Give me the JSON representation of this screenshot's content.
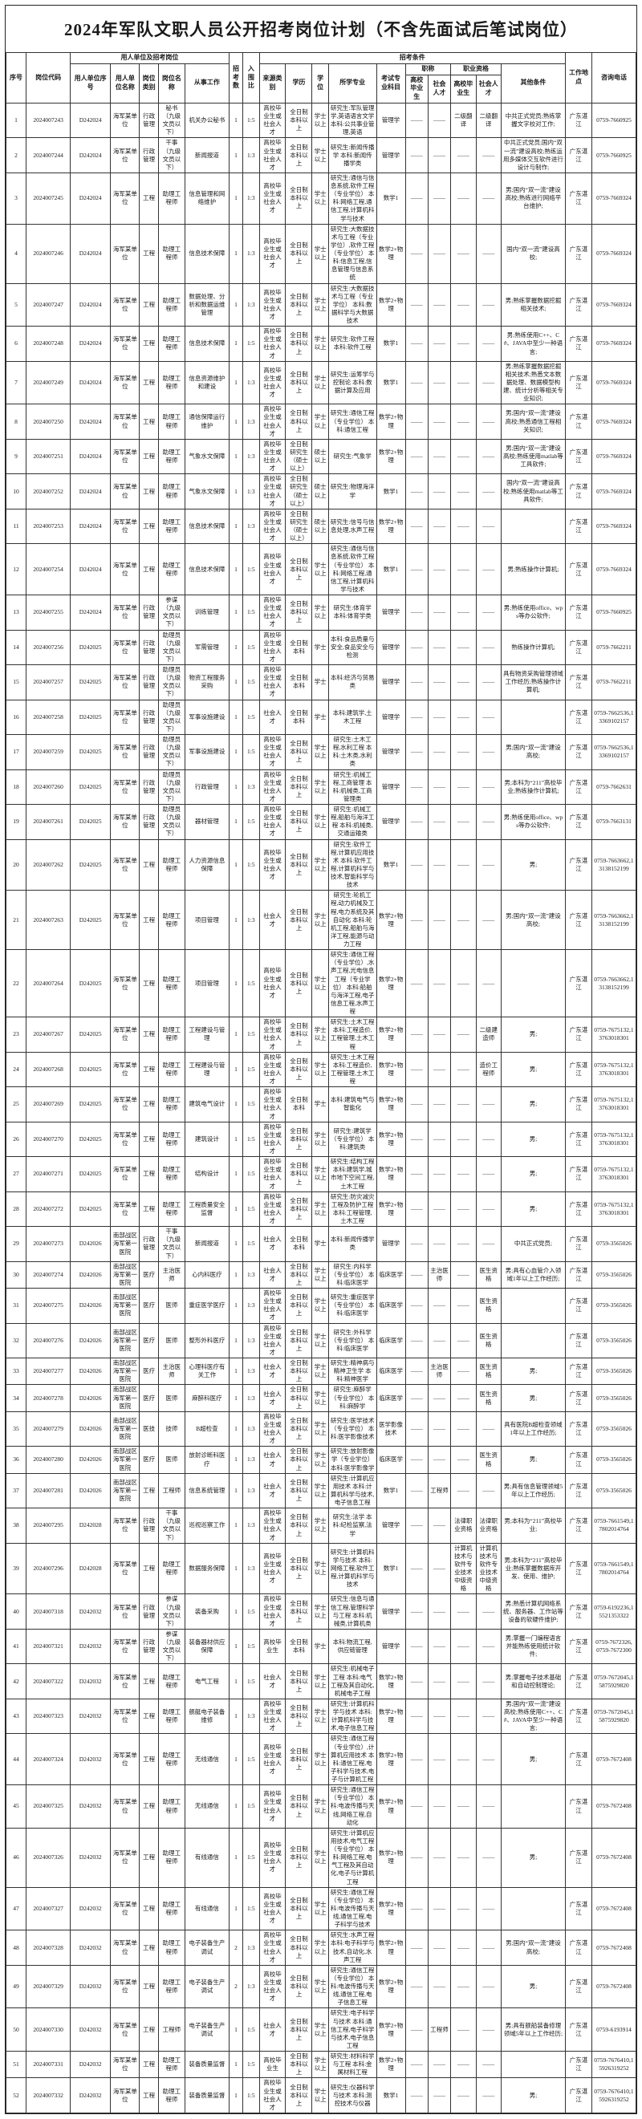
{
  "title": "2024年军队文职人员公开招考岗位计划（不含先面试后笔试岗位）",
  "headers": {
    "xh": "序号",
    "code": "岗位代码",
    "group_unit": "用人单位及招考岗位",
    "unit_no": "用人单位序号",
    "unit_name": "用人单位名称",
    "post_cat": "岗位类别",
    "post_name": "岗位名称",
    "work": "从事工作",
    "num": "招考数",
    "ratio": "入围比",
    "group_cond": "招考条件",
    "source": "来源类别",
    "edu": "学历",
    "degree": "学位",
    "major": "所学专业",
    "subject": "考试专业科目",
    "title_group": "职称",
    "qual_group": "职业资格",
    "grad": "高校毕业生",
    "social": "社会人才",
    "other": "其他条件",
    "loc": "工作地点",
    "tel": "咨询电话"
  },
  "rows": [
    [
      "1",
      "2024007243",
      "D242024",
      "海军某单位",
      "行政管理",
      "秘书（九级文员以下）",
      "机关办公秘书",
      "1",
      "1:5",
      "高校毕业生或社会人才",
      "全日制本科以上",
      "学士以上",
      "研究生:军队管理学,英语语言文学 本科:公共事业管理,英语",
      "管理学",
      "——",
      "——",
      "二级翻译",
      "二级翻译",
      "中共正式党员;熟练掌握文字校对工作;",
      "广东湛江",
      "0759-7660925"
    ],
    [
      "2",
      "2024007244",
      "D242024",
      "海军某单位",
      "行政管理",
      "干事（九级文员以下）",
      "新闻报道",
      "1",
      "1:3",
      "高校毕业生或社会人才",
      "全日制本科以上",
      "学士以上",
      "研究生:新闻传播学 本科:新闻传播学类",
      "管理学",
      "——",
      "——",
      "——",
      "——",
      "中共正式党员;国内“双一流”建设高校;熟练运用多媒体交互软件进行设计与制作;",
      "广东湛江",
      "0759-7660925"
    ],
    [
      "3",
      "2024007245",
      "D242024",
      "海军某单位",
      "工程",
      "助理工程师",
      "信息管理和网络维护",
      "1",
      "1:3",
      "高校毕业生或社会人才",
      "全日制本科以上",
      "学士以上",
      "研究生:通信与信息系统,软件工程（专业学位） 本科:网络工程,通信工程,计算机科学与技术",
      "数学1",
      "——",
      "——",
      "——",
      "——",
      "男;国内“双一流”建设高校;熟练进行网络平台维护;",
      "广东湛江",
      "0759-7669324"
    ],
    [
      "4",
      "2024007246",
      "D242024",
      "海军某单位",
      "工程",
      "助理工程师",
      "信息技术保障",
      "1",
      "1:3",
      "高校毕业生或社会人才",
      "全日制本科以上",
      "学士以上",
      "研究生:大数据技术与工程（专业学位）,软件工程（专业学位） 本科:信息工程,信息管理与信息系统",
      "数学2+物理",
      "——",
      "——",
      "——",
      "——",
      "国内“双一流”建设高校;",
      "广东湛江",
      "0759-7669324"
    ],
    [
      "5",
      "2024007247",
      "D242024",
      "海军某单位",
      "工程",
      "助理工程师",
      "数据处理、分析和数据运维管理",
      "1",
      "1:3",
      "高校毕业生或社会人才",
      "全日制本科以上",
      "学士以上",
      "研究生:大数据技术与工程（专业学位） 本科:数据科学与大数据技术",
      "数学2+物理",
      "——",
      "——",
      "——",
      "——",
      "男;熟练掌握数据挖掘相关技术;",
      "广东湛江",
      "0759-7669324"
    ],
    [
      "6",
      "2024007248",
      "D242024",
      "海军某单位",
      "工程",
      "助理工程师",
      "信息技术保障",
      "1",
      "1:5",
      "高校毕业生或社会人才",
      "全日制本科以上",
      "学士以上",
      "研究生:软件工程 本科:软件工程",
      "数学1",
      "——",
      "——",
      "——",
      "——",
      "男;熟练使用C++、C#、JAVA中至少一种语言;",
      "广东湛江",
      "0759-7669324"
    ],
    [
      "7",
      "2024007249",
      "D242024",
      "海军某单位",
      "工程",
      "助理工程师",
      "信息资源维护和建设",
      "1",
      "1:3",
      "高校毕业生或社会人才",
      "全日制本科以上",
      "学士以上",
      "研究生:运筹学与控制论 本科:数据计算及应用",
      "数学1",
      "——",
      "——",
      "——",
      "——",
      "男;熟练掌握数据挖掘相关技术;熟悉文本数据处理、数据模型构建、统计分析等相关专业知识;",
      "广东湛江",
      "0759-7669324"
    ],
    [
      "8",
      "2024007250",
      "D242024",
      "海军某单位",
      "工程",
      "助理工程师",
      "通信保障运行维护",
      "1",
      "1:3",
      "高校毕业生或社会人才",
      "全日制本科以上",
      "学士以上",
      "研究生:通信工程（专业学位） 本科:通信工程",
      "数学2+物理",
      "——",
      "——",
      "——",
      "——",
      "男;国内“双一流”建设高校;熟悉通信工程相关知识;",
      "广东湛江",
      "0759-7669324"
    ],
    [
      "9",
      "2024007251",
      "D242024",
      "海军某单位",
      "工程",
      "助理工程师",
      "气象水文保障",
      "1",
      "1:3",
      "高校毕业生或社会人才",
      "全日制研究生（硕士以上）",
      "硕士以上",
      "研究生:气象学",
      "数学2+物理",
      "——",
      "——",
      "——",
      "——",
      "男;国内“双一流”建设高校;熟练使用matlab等工具软件;",
      "广东湛江",
      "0759-7669324"
    ],
    [
      "10",
      "2024007252",
      "D242024",
      "海军某单位",
      "工程",
      "助理工程师",
      "气象水文保障",
      "1",
      "1:3",
      "高校毕业生或社会人才",
      "全日制研究生（硕士以上）",
      "硕士以上",
      "研究生:物理海洋学",
      "数学1",
      "——",
      "——",
      "——",
      "——",
      "国内“双一流”建设高校;熟练使用matlab等工具软件;",
      "广东湛江",
      "0759-7669324"
    ],
    [
      "11",
      "2024007253",
      "D242024",
      "海军某单位",
      "工程",
      "助理工程师",
      "信息技术保障",
      "1",
      "1:3",
      "高校毕业生或社会人才",
      "全日制研究生（硕士以上）",
      "硕士以上",
      "研究生:信号与信息处理,水声工程",
      "数学2+物理",
      "——",
      "——",
      "——",
      "——",
      "",
      "广东湛江",
      "0759-7669324"
    ],
    [
      "12",
      "2024007254",
      "D242024",
      "海军某单位",
      "工程",
      "助理工程师",
      "信息技术保障",
      "1",
      "1:5",
      "高校毕业生或社会人才",
      "全日制本科以上",
      "学士以上",
      "研究生:通信与信息系统,软件工程（专业学位） 本科:网络工程,通信工程,计算机科学与技术",
      "数学1",
      "——",
      "——",
      "——",
      "——",
      "男;熟练操作计算机;",
      "广东湛江",
      "0759-7669324"
    ],
    [
      "13",
      "2024007255",
      "D242024",
      "海军某单位",
      "行政管理",
      "参谋（九级文员以下）",
      "训练管理",
      "1",
      "1:5",
      "高校毕业生或社会人才",
      "全日制本科以上",
      "学士以上",
      "研究生:体育学 本科:体育学类",
      "管理学",
      "——",
      "——",
      "——",
      "——",
      "男;熟练使用office、wps等办公软件;",
      "广东湛江",
      "0759-7660925"
    ],
    [
      "14",
      "2024007256",
      "D242025",
      "海军某单位",
      "行政管理",
      "助理员（九级文员以下）",
      "军需管理",
      "1",
      "1:5",
      "高校毕业生或社会人才",
      "全日制本科",
      "学士",
      "本科:食品质量与安全,食品安全与检测",
      "管理学",
      "——",
      "——",
      "——",
      "——",
      "熟练操作计算机;",
      "广东湛江",
      "0759-7662211"
    ],
    [
      "15",
      "2024007257",
      "D242025",
      "海军某单位",
      "行政管理",
      "助理员（九级文员以下）",
      "物资工程服务采购",
      "1",
      "1:5",
      "高校毕业生或社会人才",
      "全日制本科",
      "学士",
      "本科:经济与贸易类",
      "管理学",
      "——",
      "——",
      "——",
      "——",
      "具有物资采购管理领域工作经历;熟练操作计算机;",
      "广东湛江",
      "0759-7662211"
    ],
    [
      "16",
      "2024007258",
      "D242025",
      "海军某单位",
      "行政管理",
      "助理员（九级文员以下）",
      "军事设施建设",
      "1",
      "1:5",
      "社会人才",
      "全日制本科",
      "学士",
      "本科:建筑学,土木工程",
      "管理学",
      "——",
      "——",
      "——",
      "——",
      "",
      "广东湛江",
      "0759-7662536,13369102157"
    ],
    [
      "17",
      "2024007259",
      "D242025",
      "海军某单位",
      "行政管理",
      "助理员（九级文员以下）",
      "军事设施建设",
      "1",
      "1:5",
      "高校毕业生或社会人才",
      "全日制本科以上",
      "学士以上",
      "研究生:土木工程,水利工程 本科:土木类,水利类",
      "管理学",
      "——",
      "——",
      "——",
      "——",
      "男;国内“双一流”建设高校;",
      "广东湛江",
      "0759-7662536,13369102157"
    ],
    [
      "18",
      "2024007260",
      "D242025",
      "海军某单位",
      "行政管理",
      "助理员（九级文员以下）",
      "行政管理",
      "1",
      "1:3",
      "高校毕业生或社会人才",
      "全日制本科以上",
      "学士以上",
      "研究生:机械工程,工商管理 本科:机械类,工商管理类",
      "管理学",
      "——",
      "——",
      "——",
      "——",
      "男;本科为“211”高校毕业;熟练操作计算机;",
      "广东湛江",
      "0759-7662631"
    ],
    [
      "19",
      "2024007261",
      "D242025",
      "海军某单位",
      "行政管理",
      "助理员（九级文员以下）",
      "器材管理",
      "1",
      "1:5",
      "高校毕业生或社会人才",
      "全日制本科以上",
      "学士以上",
      "研究生:机械工程,船舶与海洋工程 本科:机械类,交通运输类",
      "管理学",
      "——",
      "——",
      "——",
      "——",
      "男;熟练使用office、wps等办公软件;",
      "广东湛江",
      "0759-7663131"
    ],
    [
      "20",
      "2024007262",
      "D242025",
      "海军某单位",
      "工程",
      "助理工程师",
      "人力资源信息保障",
      "1",
      "1:5",
      "高校毕业生或社会人才",
      "全日制本科以上",
      "学士以上",
      "研究生:软件工程,计算机应用技术 本科:软件工程,计算机科学与技术,智能科学与技术",
      "数学1",
      "——",
      "——",
      "——",
      "——",
      "男;",
      "广东湛江",
      "0759-7663662,13138152199"
    ],
    [
      "21",
      "2024007263",
      "D242025",
      "海军某单位",
      "工程",
      "助理工程师",
      "项目管理",
      "1",
      "1:3",
      "社会人才",
      "全日制本科以上",
      "学士以上",
      "研究生:轮机工程,动力机械及工程,电力系统及其自动化 本科:轮机工程,船舶与海洋工程,能源与动力工程",
      "数学2+物理",
      "——",
      "——",
      "——",
      "——",
      "男;国内“双一流”建设高校;",
      "广东湛江",
      "0759-7663662,13138152199"
    ],
    [
      "22",
      "2024007264",
      "D242025",
      "海军某单位",
      "工程",
      "助理工程师",
      "项目管理",
      "1",
      "1:5",
      "高校毕业生或社会人才",
      "全日制本科以上",
      "学士以上",
      "研究生:通信工程（专业学位）,水声工程,光电信息工程（专业学位） 本科:船舶与海洋工程,电子信息工程,水声工程",
      "数学2+物理",
      "——",
      "——",
      "——",
      "——",
      "",
      "广东湛江",
      "0759-7663662,13138152199"
    ],
    [
      "23",
      "2024007267",
      "D242025",
      "海军某单位",
      "工程",
      "助理工程师",
      "工程建设与管理",
      "1",
      "1:5",
      "高校毕业生或社会人才",
      "全日制本科以上",
      "学士以上",
      "研究生:土木工程 本科:工程造价,工程管理,土木工程",
      "数学2+物理",
      "——",
      "——",
      "——",
      "二级建造师",
      "男;",
      "广东湛江",
      "0759-7675132,13763018301"
    ],
    [
      "24",
      "2024007268",
      "D242025",
      "海军某单位",
      "工程",
      "助理工程师",
      "工程建设与管理",
      "1",
      "1:5",
      "高校毕业生或社会人才",
      "全日制本科以上",
      "学士以上",
      "研究生:土木工程 本科:工程造价,工程管理,土木工程",
      "数学2+物理",
      "——",
      "——",
      "——",
      "造价工程师",
      "男;",
      "广东湛江",
      "0759-7675132,13763018301"
    ],
    [
      "25",
      "2024007269",
      "D242025",
      "海军某单位",
      "工程",
      "助理工程师",
      "建筑电气设计",
      "1",
      "1:5",
      "高校毕业生或社会人才",
      "全日制本科",
      "学士",
      "本科:建筑电气与智能化",
      "数学2+物理",
      "——",
      "——",
      "——",
      "——",
      "男;",
      "广东湛江",
      "0759-7675132,13763018301"
    ],
    [
      "26",
      "2024007270",
      "D242025",
      "海军某单位",
      "工程",
      "助理工程师",
      "建筑设计",
      "1",
      "1:5",
      "高校毕业生或社会人才",
      "全日制本科以上",
      "学士以上",
      "研究生:建筑学（专业学位） 本科:建筑类",
      "数学2+物理",
      "——",
      "——",
      "——",
      "——",
      "男;",
      "广东湛江",
      "0759-7675132,13763018301"
    ],
    [
      "27",
      "2024007271",
      "D242025",
      "海军某单位",
      "工程",
      "助理工程师",
      "结构设计",
      "1",
      "1:5",
      "高校毕业生或社会人才",
      "全日制本科以上",
      "学士以上",
      "研究生:结构工程 本科:建筑学,城市地下空间工程,土木工程",
      "数学2+物理",
      "——",
      "——",
      "——",
      "——",
      "男;",
      "广东湛江",
      "0759-7675132,13763018301"
    ],
    [
      "28",
      "2024007272",
      "D242025",
      "海军某单位",
      "工程",
      "助理工程师",
      "工程质量安全监督",
      "1",
      "1:5",
      "高校毕业生或社会人才",
      "全日制本科以上",
      "学士以上",
      "研究生:防灾减灾工程及防护工程 本科:工程管理,土木工程",
      "数学2+物理",
      "——",
      "——",
      "——",
      "——",
      "男;",
      "广东湛江",
      "0759-7675132,13763018301"
    ],
    [
      "29",
      "2024007273",
      "D242026",
      "南部战区海军第一医院",
      "行政管理",
      "干事（九级文员以下）",
      "新闻报道",
      "1",
      "1:5",
      "社会人才",
      "全日制本科",
      "学士",
      "本科:新闻传播学类",
      "管理学",
      "——",
      "——",
      "——",
      "——",
      "中共正式党员;",
      "广东湛江",
      "0759-3565026"
    ],
    [
      "30",
      "2024007274",
      "D242026",
      "南部战区海军第一医院",
      "医疗",
      "主治医师",
      "心内科医疗",
      "1",
      "1:3",
      "社会人才",
      "全日制本科以上",
      "学士以上",
      "研究生:内科学（专业学位） 本科:临床医学",
      "临床医学",
      "——",
      "主治医师",
      "——",
      "医生资格",
      "男;具有心血管介入领域1年以上工作经历;",
      "广东湛江",
      "0759-3565026"
    ],
    [
      "31",
      "2024007275",
      "D242026",
      "南部战区海军第一医院",
      "医疗",
      "医师",
      "重症医学医疗",
      "1",
      "1:3",
      "高校毕业生或社会人才",
      "全日制本科以上",
      "学士以上",
      "研究生:重症医学（专业学位） 本科:临床医学",
      "临床医学",
      "——",
      "——",
      "——",
      "医生资格",
      "",
      "广东湛江",
      "0759-3565026"
    ],
    [
      "32",
      "2024007276",
      "D242026",
      "南部战区海军第一医院",
      "医疗",
      "医师",
      "整形外科医疗",
      "1",
      "1:3",
      "高校毕业生或社会人才",
      "全日制本科以上",
      "学士以上",
      "研究生:外科学（专业学位） 本科:临床医学",
      "临床医学",
      "——",
      "——",
      "——",
      "医生资格",
      "",
      "广东湛江",
      "0759-3565026"
    ],
    [
      "33",
      "2024007277",
      "D242026",
      "南部战区海军第一医院",
      "医疗",
      "主治医师",
      "心理科医疗有关工作",
      "1",
      "1:3",
      "社会人才",
      "全日制本科以上",
      "学士以上",
      "研究生:精神病与精神卫生学 本科:精神医学",
      "临床医学",
      "——",
      "主治医师",
      "——",
      "医生资格",
      "男;",
      "广东湛江",
      "0759-3565026"
    ],
    [
      "34",
      "2024007278",
      "D242026",
      "南部战区海军第一医院",
      "医疗",
      "医师",
      "麻醉科医疗",
      "1",
      "1:3",
      "社会人才",
      "全日制本科以上",
      "学士以上",
      "研究生:麻醉学（专业学位） 本科:麻醉学",
      "临床医学",
      "——",
      "——",
      "——",
      "医生资格",
      "男;",
      "广东湛江",
      "0759-3565026"
    ],
    [
      "35",
      "2024007279",
      "D242026",
      "南部战区海军第一医院",
      "医技",
      "技师",
      "B超检查",
      "1",
      "1:3",
      "高校毕业生或社会人才",
      "全日制本科以上",
      "学士以上",
      "研究生:医学技术（专业学位） 本科:医学影像技术",
      "医学影像技术",
      "——",
      "——",
      "——",
      "——",
      "具有医院B超检查领域1年以上工作经历;",
      "广东湛江",
      "0759-3565026"
    ],
    [
      "36",
      "2024007280",
      "D242026",
      "南部战区海军第一医院",
      "医疗",
      "医师",
      "放射诊断科医疗",
      "1",
      "1:3",
      "社会人才",
      "全日制本科以上",
      "学士以上",
      "研究生:放射影像学（专业学位） 本科:医学影像学",
      "临床医学",
      "——",
      "——",
      "——",
      "医生资格",
      "男;",
      "广东湛江",
      "0759-3565026"
    ],
    [
      "37",
      "2024007281",
      "D242026",
      "南部战区海军第一医院",
      "工程",
      "工程师",
      "信息系统管理",
      "1",
      "1:3",
      "社会人才",
      "全日制本科以上",
      "学士以上",
      "研究生:计算机应用技术 本科:计算机科学与技术,电子信息工程",
      "数学1",
      "——",
      "工程师",
      "——",
      "——",
      "男;具有信息管理领域5年以上工作经历;",
      "广东湛江",
      "0759-3565026"
    ],
    [
      "38",
      "2024007295",
      "D242028",
      "海军某单位",
      "行政管理",
      "干事（九级文员以下）",
      "巡视巡察工作",
      "1",
      "1:3",
      "高校毕业生或社会人才",
      "全日制本科以上",
      "学士以上",
      "研究生:法学 本科:纪检监察,法学",
      "管理学",
      "——",
      "——",
      "法律职业资格",
      "法律职业资格",
      "男;本科为“211”高校毕业;",
      "广东湛江",
      "0759-7661549,17802014764"
    ],
    [
      "39",
      "2024007296",
      "D242028",
      "海军某单位",
      "工程",
      "助理工程师",
      "数据服务保障",
      "1",
      "1:3",
      "高校毕业生或社会人才",
      "全日制本科以上",
      "学士以上",
      "研究生:计算机科学与技术 本科:网络工程,软件工程,计算机科学与技术",
      "数学1",
      "——",
      "——",
      "计算机技术与软件专业技术中级资格",
      "计算机技术与软件专业技术中级资格",
      "男;本科为“211”高校毕业;熟练掌握数据库开发、使用、维护;",
      "广东湛江",
      "0759-7661549,17802014764"
    ],
    [
      "40",
      "2024007318",
      "D242032",
      "海军某单位",
      "行政管理",
      "参谋（九级文员以下）",
      "装备采购",
      "1",
      "1:5",
      "高校毕业生或社会人才",
      "全日制本科以上",
      "学士以上",
      "研究生:信息与通信工程,管理科学与工程 本科:机械类,计算机类",
      "管理学",
      "——",
      "——",
      "——",
      "——",
      "男;熟悉计算机网络系统、服务器、工作站等设备的软硬件维护;",
      "广东湛江",
      "0759-6192236,15521353322"
    ],
    [
      "41",
      "2024007321",
      "D242032",
      "海军某单位",
      "行政管理",
      "参谋（九级文员以下）",
      "装备器材供应保障",
      "1",
      "1:5",
      "高校毕业生",
      "全日制本科",
      "学士",
      "本科:物流工程,供应链管理",
      "管理学",
      "——",
      "——",
      "——",
      "——",
      "男;掌握一门编程语言并能熟练使用统计软件;",
      "广东湛江",
      "0759-7672326, 0759-7672300"
    ],
    [
      "42",
      "2024007322",
      "D242032",
      "海军某单位",
      "工程",
      "助理工程师",
      "电气工程",
      "1",
      "1:5",
      "社会人才",
      "全日制本科以上",
      "学士以上",
      "研究生:机械电子工程 本科:电气工程及其自动化,机械电子工程",
      "数学2+物理",
      "——",
      "——",
      "——",
      "——",
      "男;掌握电子技术基础和自动控制理论;",
      "广东湛江",
      "0759-7672045,15875929820"
    ],
    [
      "43",
      "2024007323",
      "D242032",
      "海军某单位",
      "工程",
      "助理工程师",
      "舰艇电子装备维修",
      "1",
      "1:3",
      "高校毕业生或社会人才",
      "全日制本科以上",
      "学士以上",
      "研究生:计算机科学与技术 本科:计算机科学与技术,电子信息工程",
      "数学2+物理",
      "——",
      "——",
      "——",
      "——",
      "男;国内“双一流”建设高校;熟练使用C++、C#、JAVA中至少一种语言;",
      "广东湛江",
      "0759-7672045,15875929820"
    ],
    [
      "44",
      "2024007324",
      "D242032",
      "海军某单位",
      "工程",
      "助理工程师",
      "无线通信",
      "1",
      "1:5",
      "高校毕业生或社会人才",
      "全日制本科以上",
      "学士以上",
      "研究生:通信工程（专业学位）,计算机应用技术 本科:通信工程,电子科学与技术,电子与计算机工程",
      "数学2+物理",
      "——",
      "——",
      "——",
      "——",
      "男;",
      "广东湛江",
      "0759-7672408"
    ],
    [
      "45",
      "2024007325",
      "D242032",
      "海军某单位",
      "工程",
      "助理工程师",
      "无线通信",
      "1",
      "1:5",
      "高校毕业生或社会人才",
      "全日制本科以上",
      "学士以上",
      "研究生:通信工程（专业学位） 本科:电波传播与天线,网络工程,自动化",
      "数学2+物理",
      "——",
      "——",
      "——",
      "——",
      "",
      "广东湛江",
      "0759-7672408"
    ],
    [
      "46",
      "2024007326",
      "D242032",
      "海军某单位",
      "工程",
      "助理工程师",
      "有线通信",
      "1",
      "1:5",
      "高校毕业生或社会人才",
      "全日制本科以上",
      "学士以上",
      "研究生:计算机应用技术,电气工程（专业学位） 本科:网络工程,电气工程及其自动化,电子与计算机工程",
      "数学2+物理",
      "——",
      "——",
      "——",
      "——",
      "男;",
      "广东湛江",
      "0759-7672408"
    ],
    [
      "47",
      "2024007327",
      "D242032",
      "海军某单位",
      "工程",
      "助理工程师",
      "有线通信",
      "1",
      "1:5",
      "高校毕业生或社会人才",
      "全日制本科以上",
      "学士以上",
      "研究生:通信工程（专业学位） 本科:电波传播与天线,通信工程,电子科学与技术",
      "数学2+物理",
      "——",
      "——",
      "——",
      "——",
      "",
      "广东湛江",
      "0759-7672408"
    ],
    [
      "48",
      "2024007328",
      "D242032",
      "海军某单位",
      "工程",
      "助理工程师",
      "电子装备生产调试",
      "2",
      "1:3",
      "高校毕业生或社会人才",
      "全日制本科以上",
      "学士以上",
      "研究生:水声工程 本科:电子科学与技术,自动化,水声工程",
      "数学2+物理",
      "——",
      "——",
      "——",
      "——",
      "男;国内“双一流”建设高校;",
      "广东湛江",
      "0759-7672408"
    ],
    [
      "49",
      "2024007329",
      "D242032",
      "海军某单位",
      "工程",
      "助理工程师",
      "电子装备生产调试",
      "2",
      "1:3",
      "高校毕业生或社会人才",
      "全日制本科以上",
      "学士以上",
      "研究生:通信工程（专业学位） 本科:电波传播与天线,通信工程,电子信息工程",
      "数学2+物理",
      "——",
      "——",
      "——",
      "——",
      "男;",
      "广东湛江",
      "0759-7672408"
    ],
    [
      "50",
      "2024007330",
      "D242032",
      "海军某单位",
      "工程",
      "工程师",
      "电子装备生产调试",
      "1",
      "1:5",
      "社会人才",
      "全日制本科以上",
      "学士以上",
      "研究生:电子科学与技术 本科:通信工程,电子科学与技术,电子信息工程",
      "数学2+物理",
      "——",
      "工程师",
      "——",
      "——",
      "男;具有舰船装备修理领域5年以上工作经历;",
      "广东湛江",
      "0759-6193914"
    ],
    [
      "51",
      "2024007331",
      "D242032",
      "海军某单位",
      "工程",
      "助理工程师",
      "装备质量监督",
      "1",
      "1:5",
      "高校毕业生",
      "全日制本科以上",
      "学士以上",
      "研究生:材料科学与工程 本科:金属材料工程",
      "数学2+物理",
      "——",
      "——",
      "——",
      "——",
      "",
      "广东湛江",
      "0759-7676410,15926319252"
    ],
    [
      "52",
      "2024007332",
      "D242032",
      "海军某单位",
      "工程",
      "助理工程师",
      "装备质量监督",
      "1",
      "1:5",
      "高校毕业生或社会人才",
      "全日制本科以上",
      "学士以上",
      "研究生:仪器科学与技术 本科:测控技术与仪器",
      "数学1",
      "——",
      "——",
      "——",
      "——",
      "男;",
      "广东湛江",
      "0759-7676410,15926319252"
    ]
  ]
}
